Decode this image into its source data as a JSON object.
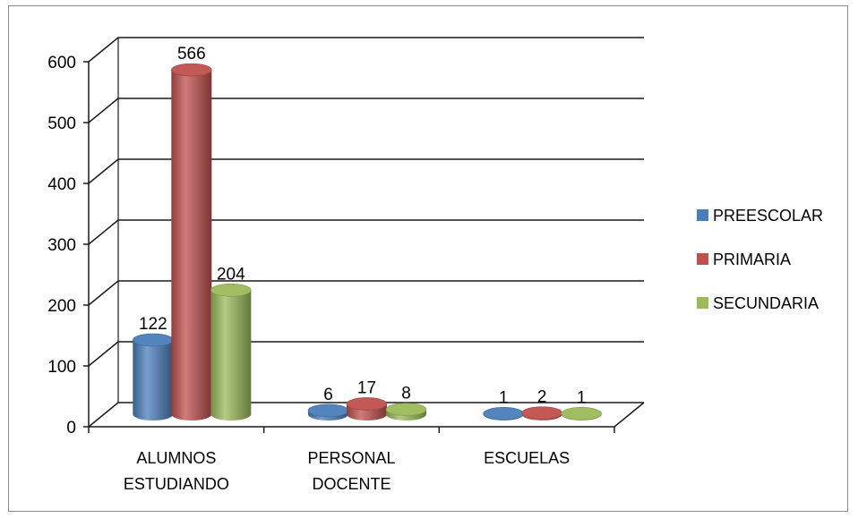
{
  "chart_data": {
    "type": "bar",
    "style": "3d-cylinder",
    "categories": [
      [
        "ALUMNOS",
        "ESTUDIANDO"
      ],
      [
        "PERSONAL",
        "DOCENTE"
      ],
      [
        "ESCUELAS"
      ]
    ],
    "series": [
      {
        "name": "PREESCOLAR",
        "values": [
          122,
          6,
          1
        ],
        "color": "#4a7ebb"
      },
      {
        "name": "PRIMARIA",
        "values": [
          566,
          17,
          2
        ],
        "color": "#c0504d"
      },
      {
        "name": "SECUNDARIA",
        "values": [
          204,
          8,
          1
        ],
        "color": "#9bbb59"
      }
    ],
    "ylim": [
      0,
      600
    ],
    "yticks": [
      0,
      100,
      200,
      300,
      400,
      500,
      600
    ],
    "grid": true,
    "legend": "right",
    "data_labels": true
  }
}
